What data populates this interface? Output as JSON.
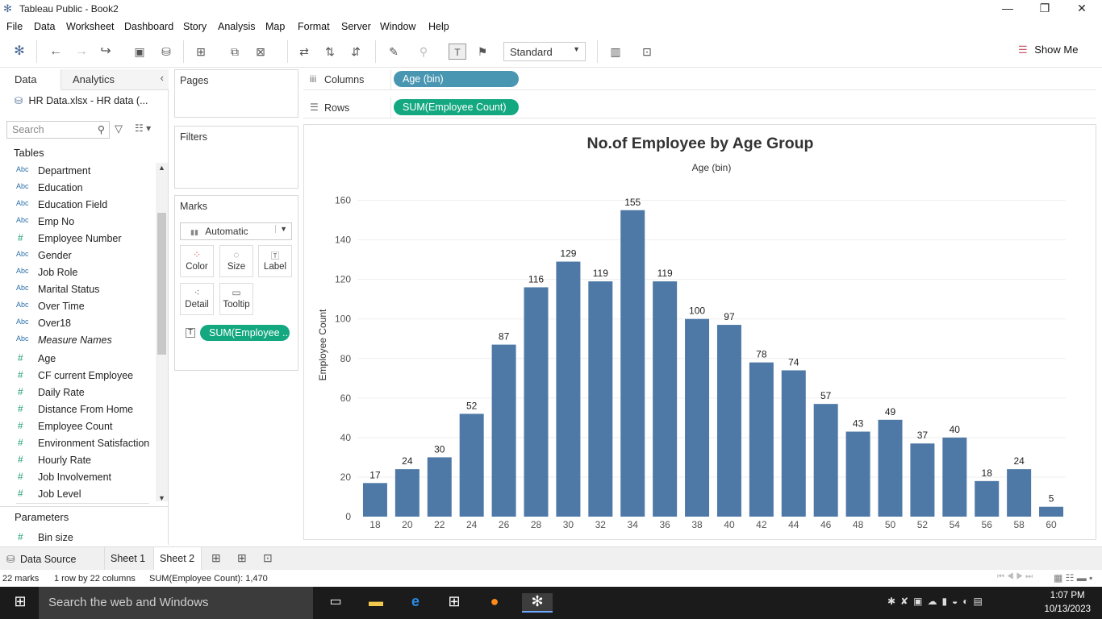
{
  "window": {
    "title": "Tableau Public - Book2"
  },
  "menu": [
    "File",
    "Data",
    "Worksheet",
    "Dashboard",
    "Story",
    "Analysis",
    "Map",
    "Format",
    "Server",
    "Window",
    "Help"
  ],
  "toolbar": {
    "fit_select": "Standard",
    "show_me": "Show Me"
  },
  "left_pane": {
    "tab_data": "Data",
    "tab_analytics": "Analytics",
    "datasource": "HR Data.xlsx - HR data (...",
    "search_placeholder": "Search",
    "tables_header": "Tables",
    "dimensions": [
      {
        "type": "Abc",
        "name": "Department"
      },
      {
        "type": "Abc",
        "name": "Education"
      },
      {
        "type": "Abc",
        "name": "Education Field"
      },
      {
        "type": "Abc",
        "name": "Emp No"
      },
      {
        "type": "#",
        "name": "Employee Number"
      },
      {
        "type": "Abc",
        "name": "Gender"
      },
      {
        "type": "Abc",
        "name": "Job Role"
      },
      {
        "type": "Abc",
        "name": "Marital Status"
      },
      {
        "type": "Abc",
        "name": "Over Time"
      },
      {
        "type": "Abc",
        "name": "Over18"
      },
      {
        "type": "Abc",
        "name": "Measure Names"
      }
    ],
    "measures": [
      {
        "type": "#",
        "name": "Age"
      },
      {
        "type": "#",
        "name": "CF current Employee"
      },
      {
        "type": "#",
        "name": "Daily Rate"
      },
      {
        "type": "#",
        "name": "Distance From Home"
      },
      {
        "type": "#",
        "name": "Employee Count"
      },
      {
        "type": "#",
        "name": "Environment Satisfaction"
      },
      {
        "type": "#",
        "name": "Hourly Rate"
      },
      {
        "type": "#",
        "name": "Job Involvement"
      },
      {
        "type": "#",
        "name": "Job Level"
      }
    ],
    "parameters_header": "Parameters",
    "parameters": [
      {
        "type": "#",
        "name": "Bin size"
      }
    ]
  },
  "cards": {
    "pages": "Pages",
    "filters": "Filters",
    "marks": "Marks",
    "mark_type": "Automatic",
    "mark_buttons": [
      "Color",
      "Size",
      "Label",
      "Detail",
      "Tooltip"
    ],
    "marks_pill": "SUM(Employee .."
  },
  "shelves": {
    "columns_label": "Columns",
    "columns_pill": "Age (bin)",
    "rows_label": "Rows",
    "rows_pill": "SUM(Employee Count)"
  },
  "chart_data": {
    "type": "bar",
    "title": "No.of Employee by Age Group",
    "xlabel": "Age (bin)",
    "ylabel": "Employee Count",
    "categories": [
      "18",
      "20",
      "22",
      "24",
      "26",
      "28",
      "30",
      "32",
      "34",
      "36",
      "38",
      "40",
      "42",
      "44",
      "46",
      "48",
      "50",
      "52",
      "54",
      "56",
      "58",
      "60"
    ],
    "values": [
      17,
      24,
      30,
      52,
      87,
      116,
      129,
      119,
      155,
      119,
      100,
      97,
      78,
      74,
      57,
      43,
      49,
      37,
      40,
      18,
      24,
      5
    ],
    "yticks": [
      0,
      20,
      40,
      60,
      80,
      100,
      120,
      140,
      160
    ],
    "ylim": [
      0,
      170
    ],
    "bar_color": "#4e79a7",
    "grid": true
  },
  "sheet_tabs": [
    "Data Source",
    "Sheet 1",
    "Sheet 2"
  ],
  "status": {
    "marks": "22 marks",
    "dims": "1 row by 22 columns",
    "sum": "SUM(Employee Count): 1,470"
  },
  "taskbar": {
    "search": "Search the web and Windows",
    "time": "1:07 PM",
    "date": "10/13/2023"
  }
}
